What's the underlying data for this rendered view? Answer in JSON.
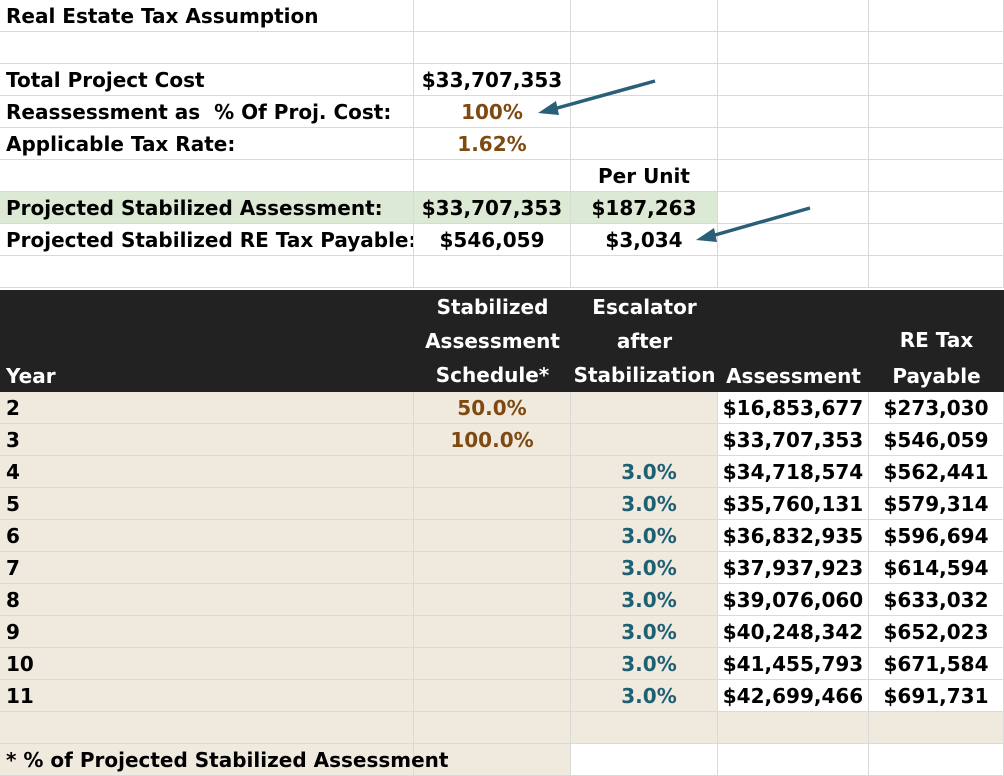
{
  "title": "Real Estate Tax Assumption",
  "inputs": {
    "total_cost_label": "Total Project Cost",
    "total_cost_value": "$33,707,353",
    "reassessment_label": "Reassessment as  % Of Proj. Cost:",
    "reassessment_value": "100%",
    "tax_rate_label": "Applicable Tax Rate:",
    "tax_rate_value": "1.62%",
    "per_unit_header": "Per Unit",
    "stab_assessment_label": "Projected Stabilized Assessment:",
    "stab_assessment_value": "$33,707,353",
    "stab_assessment_per_unit": "$187,263",
    "re_tax_label": "Projected Stabilized RE Tax Payable:",
    "re_tax_value": "$546,059",
    "re_tax_per_unit": "$3,034"
  },
  "table": {
    "headers": {
      "year": "Year",
      "schedule_l1": "Stabilized",
      "schedule_l2": "Assessment",
      "schedule_l3": "Schedule*",
      "escalator_l1": "Escalator",
      "escalator_l2": "after",
      "escalator_l3": "Stabilization",
      "assessment": "Assessment",
      "tax_l1": "RE Tax",
      "tax_l2": "Payable"
    },
    "rows": [
      {
        "year": "2",
        "schedule": "50.0%",
        "escalator": "",
        "assessment": "$16,853,677",
        "tax": "$273,030"
      },
      {
        "year": "3",
        "schedule": "100.0%",
        "escalator": "",
        "assessment": "$33,707,353",
        "tax": "$546,059"
      },
      {
        "year": "4",
        "schedule": "",
        "escalator": "3.0%",
        "assessment": "$34,718,574",
        "tax": "$562,441"
      },
      {
        "year": "5",
        "schedule": "",
        "escalator": "3.0%",
        "assessment": "$35,760,131",
        "tax": "$579,314"
      },
      {
        "year": "6",
        "schedule": "",
        "escalator": "3.0%",
        "assessment": "$36,832,935",
        "tax": "$596,694"
      },
      {
        "year": "7",
        "schedule": "",
        "escalator": "3.0%",
        "assessment": "$37,937,923",
        "tax": "$614,594"
      },
      {
        "year": "8",
        "schedule": "",
        "escalator": "3.0%",
        "assessment": "$39,076,060",
        "tax": "$633,032"
      },
      {
        "year": "9",
        "schedule": "",
        "escalator": "3.0%",
        "assessment": "$40,248,342",
        "tax": "$652,023"
      },
      {
        "year": "10",
        "schedule": "",
        "escalator": "3.0%",
        "assessment": "$41,455,793",
        "tax": "$671,584"
      },
      {
        "year": "11",
        "schedule": "",
        "escalator": "3.0%",
        "assessment": "$42,699,466",
        "tax": "$691,731"
      }
    ]
  },
  "footnote": "* % of Projected Stabilized Assessment",
  "colors": {
    "input_brown": "#7f4a12",
    "escalator_teal": "#1f5f73",
    "highlight_green": "#dcead5",
    "table_beige": "#efe9de",
    "header_dark": "#222222",
    "arrow_blue": "#2a5f78"
  }
}
